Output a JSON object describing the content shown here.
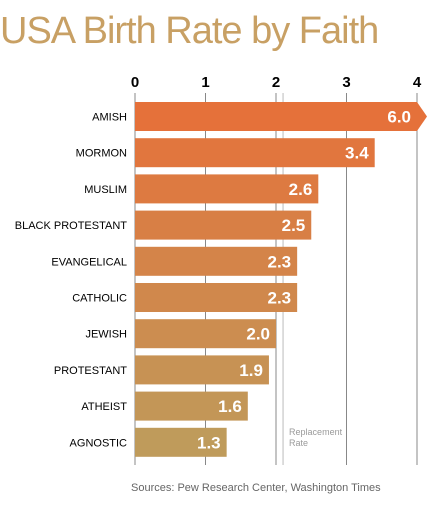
{
  "title": "USA Birth Rate by Faith",
  "source": "Sources: Pew Research Center, Washington Times",
  "colors": {
    "title": "#c8a064",
    "bar_top": "#e5713a",
    "bar_bottom": "#bf9b5b",
    "grid": "#888888",
    "replacement_line": "#bbbbbb",
    "annotation": "#9a9a9a"
  },
  "chart_data": {
    "type": "bar",
    "orientation": "horizontal",
    "title": "USA Birth Rate by Faith",
    "categories": [
      "AMISH",
      "MORMON",
      "MUSLIM",
      "BLACK PROTESTANT",
      "EVANGELICAL",
      "CATHOLIC",
      "JEWISH",
      "PROTESTANT",
      "ATHEIST",
      "AGNOSTIC"
    ],
    "values": [
      6.0,
      3.4,
      2.6,
      2.5,
      2.3,
      2.3,
      2.0,
      1.9,
      1.6,
      1.3
    ],
    "data_labels": [
      "6.0",
      "3.4",
      "2.6",
      "2.5",
      "2.3",
      "2.3",
      "2.0",
      "1.9",
      "1.6",
      "1.3"
    ],
    "xlim": [
      0,
      4
    ],
    "x_ticks": [
      "0",
      "1",
      "2",
      "3",
      "4"
    ],
    "x_axis_position": "top",
    "grid": true,
    "truncated_bars": [
      "AMISH"
    ],
    "reference_line": {
      "value": 2.1,
      "label_lines": [
        "Replacement",
        "Rate"
      ]
    }
  }
}
